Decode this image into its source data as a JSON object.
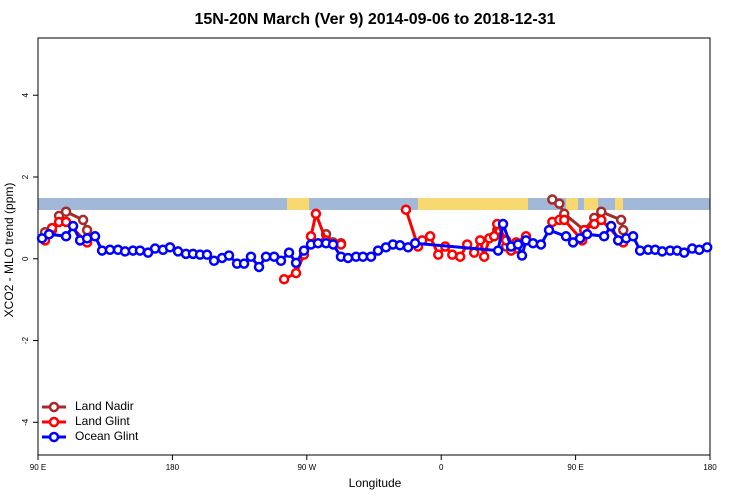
{
  "chart_data": {
    "type": "line",
    "title": "15N-20N March (Ver 9)   2014-09-06 to 2018-12-31",
    "x_label": "Longitude",
    "y_label": "XCO2 - MLO trend (ppm)",
    "xlim": [
      90,
      540
    ],
    "xticks": [
      {
        "value": 90,
        "label": "90 E"
      },
      180,
      {
        "value": 270,
        "label": "90 W"
      },
      {
        "value": 360,
        "label": "0"
      },
      {
        "value": 450,
        "label": "90 E"
      },
      {
        "value": 540,
        "label": "180"
      }
    ],
    "ylim": [
      -4.8,
      5.4
    ],
    "yticks": [
      -4,
      -2,
      0,
      2,
      4
    ],
    "legend": "bottom-left",
    "series": [
      {
        "name": "Land Nadir",
        "color": "#a52a2a",
        "x": [
          94.7,
          99.4,
          104.1,
          108.8,
          120.2,
          122.9,
          null,
          282.9,
          287.6,
          292.9,
          null,
          397.5,
          403.5,
          410.2,
          null,
          434.4,
          439.1,
          442.4,
          455.8,
          462.5,
          467.2,
          480.5,
          481.9
        ],
        "values": [
          0.65,
          0.7,
          1.05,
          1.15,
          0.95,
          0.7,
          null,
          0.6,
          0.4,
          0.38,
          null,
          0.7,
          0.3,
          0.25,
          null,
          1.45,
          1.35,
          1.1,
          0.7,
          1.0,
          1.15,
          0.95,
          0.7
        ]
      },
      {
        "name": "Land Glint",
        "color": "#ff0000",
        "x": [
          94.7,
          99.4,
          104.1,
          108.8,
          122.9,
          null,
          254.8,
          262.8,
          268.1,
          272.8,
          276.1,
          282.9,
          292.9,
          null,
          336.4,
          344.5,
          347.3,
          352.6,
          358.0,
          362.7,
          367.4,
          372.7,
          377.4,
          382.1,
          386.1,
          388.8,
          392.2,
          395.5,
          397.5,
          403.5,
          406.8,
          410.2,
          416.8,
          null,
          434.4,
          439.1,
          442.4,
          454.4,
          455.8,
          462.5,
          467.2,
          481.9
        ],
        "values": [
          0.45,
          0.75,
          0.9,
          0.9,
          0.4,
          null,
          -0.5,
          -0.35,
          0.1,
          0.55,
          1.1,
          0.45,
          0.35,
          null,
          1.2,
          0.3,
          0.45,
          0.55,
          0.1,
          0.3,
          0.1,
          0.05,
          0.35,
          0.15,
          0.45,
          0.05,
          0.5,
          0.55,
          0.85,
          0.45,
          0.2,
          0.4,
          0.55,
          null,
          0.9,
          0.95,
          0.95,
          0.45,
          0.7,
          0.85,
          0.95,
          0.4
        ]
      },
      {
        "name": "Ocean Glint",
        "color": "#0000ff",
        "x": [
          92.7,
          97.4,
          108.8,
          113.5,
          118.2,
          122.9,
          128.2,
          132.9,
          138.2,
          143.6,
          148.3,
          153.6,
          158.3,
          163.7,
          168.4,
          173.7,
          178.4,
          183.8,
          189.1,
          193.8,
          198.5,
          203.2,
          207.9,
          213.3,
          217.9,
          223.3,
          228.0,
          232.6,
          238.0,
          242.7,
          248.1,
          252.7,
          258.1,
          262.8,
          268.1,
          272.8,
          277.5,
          282.9,
          287.6,
          292.9,
          297.6,
          303.0,
          307.6,
          313.0,
          317.7,
          323.0,
          327.7,
          332.4,
          337.8,
          342.5,
          398.1,
          401.4,
          406.8,
          411.4,
          414.1,
          416.8,
          421.5,
          426.8,
          432.2,
          443.6,
          448.3,
          453.0,
          457.7,
          469.1,
          473.8,
          478.5,
          483.9,
          488.5,
          493.2,
          498.6,
          503.3,
          508.0,
          513.3,
          518.0,
          522.7,
          528.1,
          532.8,
          538.1
        ],
        "values": [
          0.5,
          0.6,
          0.55,
          0.8,
          0.45,
          0.5,
          0.55,
          0.2,
          0.22,
          0.22,
          0.18,
          0.2,
          0.2,
          0.15,
          0.25,
          0.22,
          0.28,
          0.18,
          0.12,
          0.12,
          0.1,
          0.1,
          -0.05,
          0.02,
          0.08,
          -0.12,
          -0.12,
          0.05,
          -0.2,
          0.05,
          0.05,
          -0.05,
          0.15,
          -0.1,
          0.2,
          0.35,
          0.38,
          0.38,
          0.35,
          0.05,
          0.02,
          0.05,
          0.05,
          0.05,
          0.2,
          0.28,
          0.35,
          0.33,
          0.28,
          0.38,
          0.2,
          0.85,
          0.3,
          0.35,
          0.08,
          0.45,
          0.38,
          0.35,
          0.7,
          0.55,
          0.4,
          0.5,
          0.6,
          0.55,
          0.8,
          0.45,
          0.5,
          0.55,
          0.2,
          0.22,
          0.22,
          0.18,
          0.2,
          0.2,
          0.15,
          0.25,
          0.22,
          0.28
        ]
      }
    ]
  }
}
